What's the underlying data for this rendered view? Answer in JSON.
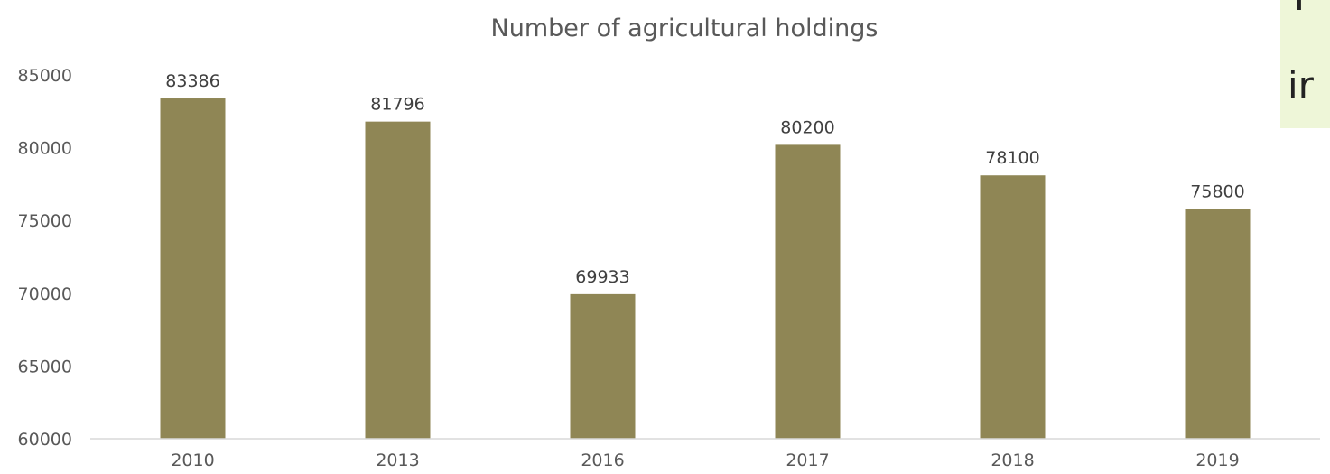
{
  "chart_data": {
    "type": "bar",
    "title": "Number of agricultural holdings",
    "categories": [
      "2010",
      "2013",
      "2016",
      "2017",
      "2018",
      "2019"
    ],
    "series": [
      {
        "values": [
          83386,
          81796,
          69933,
          80200,
          78100,
          75800
        ],
        "color": "#8f8655"
      }
    ],
    "ylim": [
      60000,
      85000
    ],
    "yticks": [
      60000,
      65000,
      70000,
      75000,
      80000,
      85000
    ],
    "xlabel": "",
    "ylabel": "",
    "grid": false,
    "data_labels": true
  },
  "overlay": {
    "line1": "T",
    "line2": "ir"
  }
}
